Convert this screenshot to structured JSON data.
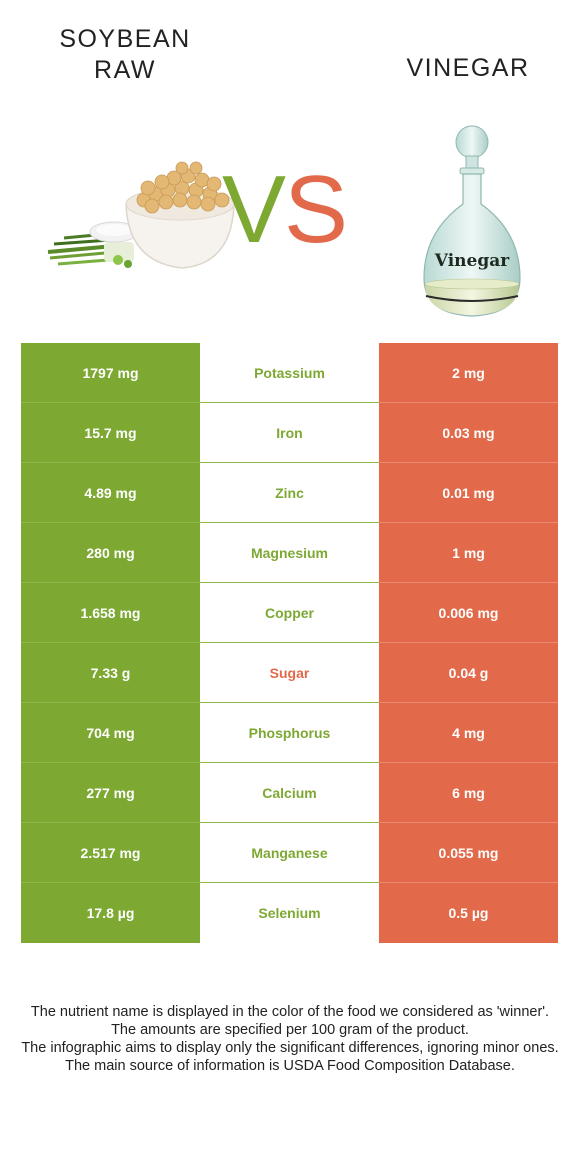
{
  "header": {
    "left_food_line1": "SOYBEAN",
    "left_food_line2": "RAW",
    "vs_v": "V",
    "vs_s": "S",
    "right_food": "VINEGAR",
    "bottle_label": "Vinegar"
  },
  "colors": {
    "left_winner": "#7da832",
    "right_winner": "#e2694a"
  },
  "rows": [
    {
      "left": "1797 mg",
      "nutrient": "Potassium",
      "right": "2 mg",
      "winner": "left"
    },
    {
      "left": "15.7 mg",
      "nutrient": "Iron",
      "right": "0.03 mg",
      "winner": "left"
    },
    {
      "left": "4.89 mg",
      "nutrient": "Zinc",
      "right": "0.01 mg",
      "winner": "left"
    },
    {
      "left": "280 mg",
      "nutrient": "Magnesium",
      "right": "1 mg",
      "winner": "left"
    },
    {
      "left": "1.658 mg",
      "nutrient": "Copper",
      "right": "0.006 mg",
      "winner": "left"
    },
    {
      "left": "7.33 g",
      "nutrient": "Sugar",
      "right": "0.04 g",
      "winner": "right"
    },
    {
      "left": "704 mg",
      "nutrient": "Phosphorus",
      "right": "4 mg",
      "winner": "left"
    },
    {
      "left": "277 mg",
      "nutrient": "Calcium",
      "right": "6 mg",
      "winner": "left"
    },
    {
      "left": "2.517 mg",
      "nutrient": "Manganese",
      "right": "0.055 mg",
      "winner": "left"
    },
    {
      "left": "17.8 µg",
      "nutrient": "Selenium",
      "right": "0.5 µg",
      "winner": "left"
    }
  ],
  "footnotes": [
    "The nutrient name is displayed in the color of the food we considered as 'winner'.",
    "The amounts are specified per 100 gram of the product.",
    "The infographic aims to display only the significant differences, ignoring minor ones.",
    "The main source of information is USDA Food Composition Database."
  ]
}
